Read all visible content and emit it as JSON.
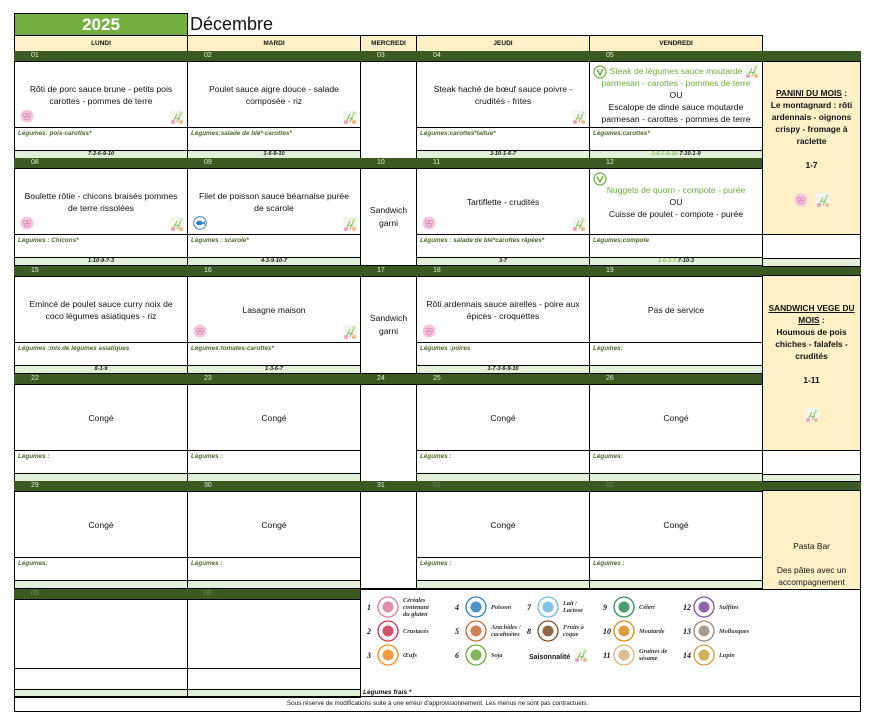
{
  "header": {
    "year": "2025",
    "month": "Décembre"
  },
  "days": [
    "LUNDI",
    "MARDI",
    "MERCREDI",
    "JEUDI",
    "VENDREDI"
  ],
  "weeks": [
    {
      "days": [
        {
          "date": "01",
          "meal": "Rôti de porc sauce brune - petits pois carottes - pommes de terre",
          "legumes": "Légumes: pois-carottes*",
          "allergens": "7-3-6-9-10",
          "icons": [
            "pig-icon",
            "seasonal-icon"
          ]
        },
        {
          "date": "02",
          "meal": "Poulet sauce aigre douce - salade composée - riz",
          "legumes": "Légumes:salade de blé*-carottes*",
          "allergens": "1-6-9-10",
          "icons": [
            "seasonal-icon"
          ]
        },
        {
          "date": "03",
          "meal": ""
        },
        {
          "date": "04",
          "meal": "Steak haché de bœuf sauce poivre - crudités - frites",
          "legumes": "Légumes:carottes*laitue*",
          "allergens": "3-10-1-6-7",
          "icons": [
            "seasonal-icon"
          ]
        },
        {
          "date": "05",
          "veg_option": "Steak de légumes sauce moutarde parmesan - carottes - pommes de terre",
          "or_label": "OU",
          "meal": "Escalope de dinde sauce moutarde parmesan - carottes - pommes de terre",
          "legumes": "Légumes:carottes*",
          "allergens_veg": "1-6-7-9-10-",
          "allergens": "7-10-1-9",
          "icons": [
            "vegetarian-icon",
            "seasonal-icon"
          ]
        }
      ]
    },
    {
      "days": [
        {
          "date": "08",
          "meal": "Boulette rôtie - chicons braisés pommes de terre rissolées",
          "legumes": "Légumes : Chicons*",
          "allergens": "1-10-9-7-3",
          "icons": [
            "pig-icon",
            "seasonal-icon"
          ]
        },
        {
          "date": "09",
          "meal": "Filet de poisson sauce béarnaise purée de scarole",
          "legumes": "Légumes : scarole*",
          "allergens": "4-3-9-10-7",
          "icons": [
            "fish-icon",
            "seasonal-icon"
          ]
        },
        {
          "date": "10",
          "meal": "Sandwich garni"
        },
        {
          "date": "11",
          "meal": "Tartiflette - crudités",
          "legumes": "Légumes : salade de blé*carottes râpées*",
          "allergens": "3-7",
          "icons": [
            "pig-icon",
            "seasonal-icon"
          ]
        },
        {
          "date": "12",
          "veg_option": "Nuggets de quorn - compote - purée",
          "or_label": "OU",
          "meal": "Cuisse de poulet - compote - purée",
          "legumes": "Légumes:compote",
          "allergens_veg": "1-6-3-7-",
          "allergens": "7-10-3",
          "icons": [
            "vegetarian-icon"
          ]
        }
      ]
    },
    {
      "days": [
        {
          "date": "15",
          "meal": "Emincé de poulet sauce curry noix de coco légumes asiatiques - riz",
          "legumes": "Légumes :mix de légumes asiatiques",
          "allergens": "8-1-9",
          "icons": []
        },
        {
          "date": "16",
          "meal": "Lasagne maison",
          "legumes": "Légumes:tomates-carottes*",
          "allergens": "1-3-6-7",
          "icons": [
            "pig-icon",
            "seasonal-icon"
          ]
        },
        {
          "date": "17",
          "meal": "Sandwich garni"
        },
        {
          "date": "18",
          "meal": "Rôti ardennais sauce airelles - poire aux épices - croquettes",
          "legumes": "Légumes :poires",
          "allergens": "1-7-3-6-9-10",
          "icons": [
            "pig-icon"
          ]
        },
        {
          "date": "19",
          "meal": "Pas de service",
          "legumes": "Légumes:",
          "allergens": "",
          "icons": []
        }
      ]
    },
    {
      "days": [
        {
          "date": "22",
          "meal": "Congé",
          "legumes": "Légumes :",
          "allergens": ""
        },
        {
          "date": "23",
          "meal": "Congé",
          "legumes": "Légumes :",
          "allergens": ""
        },
        {
          "date": "24",
          "meal": ""
        },
        {
          "date": "25",
          "meal": "Congé",
          "legumes": "Légumes :",
          "allergens": ""
        },
        {
          "date": "26",
          "meal": "Congé",
          "legumes": "Légumes:",
          "allergens": ""
        }
      ]
    },
    {
      "days": [
        {
          "date": "29",
          "meal": "Congé",
          "legumes": "Légumes:",
          "allergens": ""
        },
        {
          "date": "30",
          "meal": "Congé",
          "legumes": "Légumes :",
          "allergens": ""
        },
        {
          "date": "31",
          "meal": ""
        },
        {
          "date": "01",
          "faded": true,
          "meal": "Congé",
          "legumes": "Légumes :",
          "allergens": ""
        },
        {
          "date": "02",
          "faded": true,
          "meal": "Congé",
          "legumes": "Légumes :",
          "allergens": ""
        }
      ]
    },
    {
      "days": [
        {
          "date": "05",
          "faded": true,
          "meal": "",
          "legumes": "",
          "allergens": ""
        },
        {
          "date": "06",
          "faded": true,
          "meal": "",
          "legumes": "",
          "allergens": ""
        }
      ]
    }
  ],
  "side_panels": [
    {
      "title": "PANINI DU MOIS",
      "suffix": " :",
      "body": "Le montagnard : rôti ardennais - oignons crispy - fromage à raclette",
      "allergens": "1-7",
      "icons": [
        "pig-icon",
        "seasonal-icon"
      ]
    },
    {
      "title": "SANDWICH VEGE DU MOIS",
      "suffix": " :",
      "body": "Houmous de pois chiches - falafels - crudités",
      "allergens": "1-11",
      "icons": [
        "seasonal-icon"
      ]
    },
    {
      "title": "Pasta Bar",
      "body": "Des pâtes avec un accompagnement classique au choix. Un accompagnement végétarien (pesto) est également toujours proposé."
    }
  ],
  "legend": {
    "items": [
      {
        "num": "1",
        "label": "Céréales contenant du gluten",
        "icon": "wheat-icon",
        "color": "#d77a9a"
      },
      {
        "num": "2",
        "label": "Crustacés",
        "icon": "lobster-icon",
        "color": "#c8334f"
      },
      {
        "num": "3",
        "label": "Œufs",
        "icon": "egg-icon",
        "color": "#f08a1c"
      },
      {
        "num": "4",
        "label": "Poisson",
        "icon": "fish-icon",
        "color": "#2a7fc1"
      },
      {
        "num": "5",
        "label": "Arachides / cacahuètes",
        "icon": "peanut-icon",
        "color": "#c8683a"
      },
      {
        "num": "6",
        "label": "Soja",
        "icon": "soy-icon",
        "color": "#6aab3a"
      },
      {
        "num": "7",
        "label": "Lait / Lactose",
        "icon": "milk-icon",
        "color": "#6ab8e0"
      },
      {
        "num": "8",
        "label": "Fruits à coque",
        "icon": "acorn-icon",
        "color": "#7a4a24"
      },
      {
        "num": "9",
        "label": "Céleri",
        "icon": "celery-icon",
        "color": "#2e8b57"
      },
      {
        "num": "10",
        "label": "Moutarde",
        "icon": "mustard-icon",
        "color": "#d98a1e"
      },
      {
        "num": "11",
        "label": "Graines de sésame",
        "icon": "sesame-icon",
        "color": "#d9b27a"
      },
      {
        "num": "12",
        "label": "Sulfites",
        "icon": "grapes-icon",
        "color": "#7a4aa0"
      },
      {
        "num": "13",
        "label": "Mollusques",
        "icon": "snail-icon",
        "color": "#9a8a7a"
      },
      {
        "num": "14",
        "label": "Lupin",
        "icon": "lupin-icon",
        "color": "#c9a040"
      }
    ],
    "seasonality_label": "Saisonnalité",
    "fresh_vegetables": "Légumes frais *"
  },
  "footer": "Sous réserve de modifications suite à une erreur d'approvisionnement. Les menus ne sont pas contractuels.",
  "colors": {
    "year_bg": "#76b043",
    "date_bar": "#3b5a22",
    "allergen_row": "#e2efd9",
    "panel": "#fff0c8",
    "vegetarian": "#6aab3a"
  }
}
